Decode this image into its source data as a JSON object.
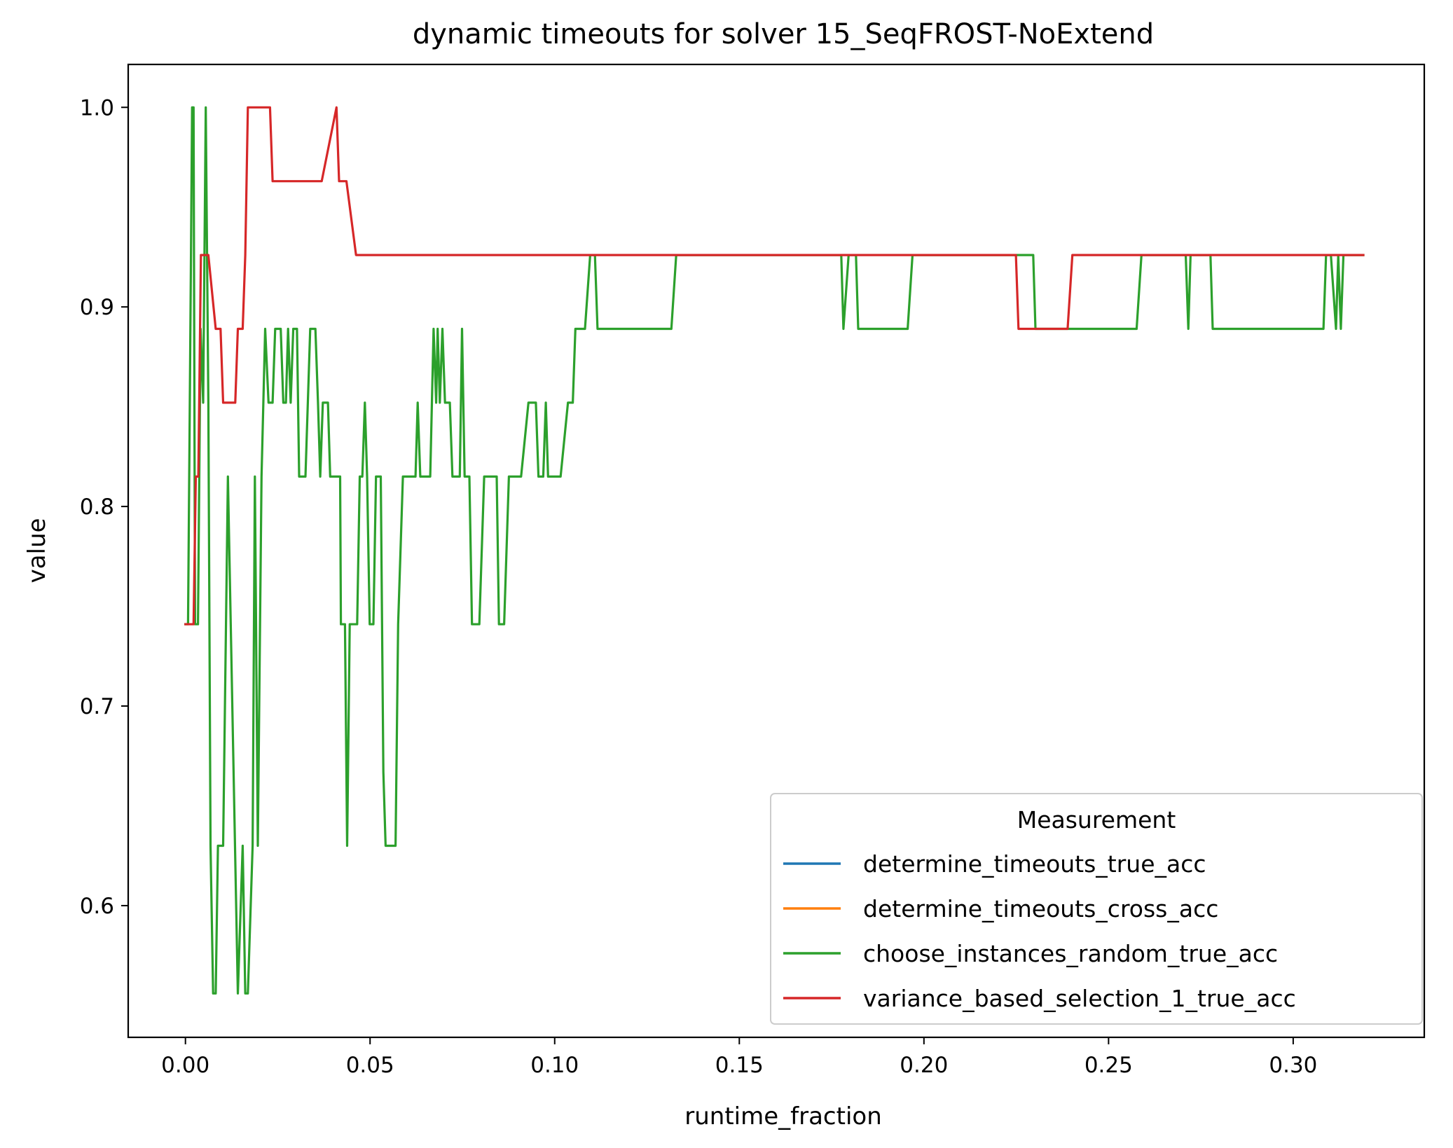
{
  "chart_data": {
    "type": "line",
    "title": "dynamic timeouts for solver 15_SeqFROST-NoExtend",
    "xlabel": "runtime_fraction",
    "ylabel": "value",
    "xlim": [
      -0.0155,
      0.3355
    ],
    "ylim": [
      0.534,
      1.0215
    ],
    "xticks": [
      0.0,
      0.05,
      0.1,
      0.15,
      0.2,
      0.25,
      0.3
    ],
    "xtick_labels": [
      "0.00",
      "0.05",
      "0.10",
      "0.15",
      "0.20",
      "0.25",
      "0.30"
    ],
    "yticks": [
      0.6,
      0.7,
      0.8,
      0.9,
      1.0
    ],
    "ytick_labels": [
      "0.6",
      "0.7",
      "0.8",
      "0.9",
      "1.0"
    ],
    "grid": false,
    "legend": {
      "title": "Measurement",
      "position": "lower-right"
    },
    "series": [
      {
        "name": "determine_timeouts_true_acc",
        "color": "#1f77b4",
        "points": []
      },
      {
        "name": "determine_timeouts_cross_acc",
        "color": "#ff7f0e",
        "points": []
      },
      {
        "name": "choose_instances_random_true_acc",
        "color": "#2ca02c",
        "points": [
          [
            0.0,
            0.741
          ],
          [
            0.0007,
            0.741
          ],
          [
            0.0015,
            0.926
          ],
          [
            0.0018,
            1.0
          ],
          [
            0.0022,
            1.0
          ],
          [
            0.0026,
            0.741
          ],
          [
            0.0034,
            0.741
          ],
          [
            0.0041,
            0.889
          ],
          [
            0.0048,
            0.852
          ],
          [
            0.0055,
            1.0
          ],
          [
            0.0062,
            0.852
          ],
          [
            0.0068,
            0.63
          ],
          [
            0.0075,
            0.556
          ],
          [
            0.0082,
            0.556
          ],
          [
            0.0088,
            0.63
          ],
          [
            0.0102,
            0.63
          ],
          [
            0.0115,
            0.815
          ],
          [
            0.0142,
            0.556
          ],
          [
            0.0155,
            0.63
          ],
          [
            0.0162,
            0.556
          ],
          [
            0.0169,
            0.556
          ],
          [
            0.0182,
            0.63
          ],
          [
            0.0188,
            0.815
          ],
          [
            0.0196,
            0.63
          ],
          [
            0.0206,
            0.815
          ],
          [
            0.0211,
            0.852
          ],
          [
            0.0216,
            0.889
          ],
          [
            0.0225,
            0.852
          ],
          [
            0.0236,
            0.852
          ],
          [
            0.0243,
            0.889
          ],
          [
            0.0258,
            0.889
          ],
          [
            0.0265,
            0.852
          ],
          [
            0.0272,
            0.852
          ],
          [
            0.0278,
            0.889
          ],
          [
            0.0285,
            0.852
          ],
          [
            0.0292,
            0.889
          ],
          [
            0.0302,
            0.889
          ],
          [
            0.0308,
            0.815
          ],
          [
            0.0325,
            0.815
          ],
          [
            0.0338,
            0.889
          ],
          [
            0.0352,
            0.889
          ],
          [
            0.0359,
            0.852
          ],
          [
            0.0365,
            0.815
          ],
          [
            0.0372,
            0.852
          ],
          [
            0.0386,
            0.852
          ],
          [
            0.0392,
            0.815
          ],
          [
            0.0419,
            0.815
          ],
          [
            0.0421,
            0.741
          ],
          [
            0.0432,
            0.741
          ],
          [
            0.0438,
            0.63
          ],
          [
            0.0445,
            0.741
          ],
          [
            0.0465,
            0.741
          ],
          [
            0.0472,
            0.815
          ],
          [
            0.0479,
            0.815
          ],
          [
            0.0486,
            0.852
          ],
          [
            0.0492,
            0.815
          ],
          [
            0.0499,
            0.741
          ],
          [
            0.0509,
            0.741
          ],
          [
            0.0516,
            0.815
          ],
          [
            0.0529,
            0.815
          ],
          [
            0.0536,
            0.667
          ],
          [
            0.0542,
            0.63
          ],
          [
            0.0569,
            0.63
          ],
          [
            0.0576,
            0.741
          ],
          [
            0.0589,
            0.815
          ],
          [
            0.0623,
            0.815
          ],
          [
            0.0629,
            0.852
          ],
          [
            0.0636,
            0.815
          ],
          [
            0.0663,
            0.815
          ],
          [
            0.0672,
            0.889
          ],
          [
            0.0679,
            0.852
          ],
          [
            0.0683,
            0.889
          ],
          [
            0.0689,
            0.852
          ],
          [
            0.0696,
            0.889
          ],
          [
            0.0703,
            0.852
          ],
          [
            0.0716,
            0.852
          ],
          [
            0.0723,
            0.815
          ],
          [
            0.0743,
            0.815
          ],
          [
            0.0749,
            0.889
          ],
          [
            0.0756,
            0.815
          ],
          [
            0.0769,
            0.815
          ],
          [
            0.0776,
            0.741
          ],
          [
            0.0796,
            0.741
          ],
          [
            0.0809,
            0.815
          ],
          [
            0.0843,
            0.815
          ],
          [
            0.0849,
            0.741
          ],
          [
            0.0863,
            0.741
          ],
          [
            0.0876,
            0.815
          ],
          [
            0.0909,
            0.815
          ],
          [
            0.0929,
            0.852
          ],
          [
            0.0949,
            0.852
          ],
          [
            0.0956,
            0.815
          ],
          [
            0.0969,
            0.815
          ],
          [
            0.0976,
            0.852
          ],
          [
            0.0982,
            0.815
          ],
          [
            0.1016,
            0.815
          ],
          [
            0.1036,
            0.852
          ],
          [
            0.1049,
            0.852
          ],
          [
            0.1056,
            0.889
          ],
          [
            0.1082,
            0.889
          ],
          [
            0.1096,
            0.926
          ],
          [
            0.1109,
            0.926
          ],
          [
            0.1116,
            0.889
          ],
          [
            0.1316,
            0.889
          ],
          [
            0.1329,
            0.926
          ],
          [
            0.1776,
            0.926
          ],
          [
            0.1782,
            0.889
          ],
          [
            0.1796,
            0.926
          ],
          [
            0.1816,
            0.926
          ],
          [
            0.1822,
            0.889
          ],
          [
            0.1956,
            0.889
          ],
          [
            0.1969,
            0.926
          ],
          [
            0.2296,
            0.926
          ],
          [
            0.2302,
            0.889
          ],
          [
            0.2576,
            0.889
          ],
          [
            0.2589,
            0.926
          ],
          [
            0.2709,
            0.926
          ],
          [
            0.2716,
            0.889
          ],
          [
            0.2722,
            0.926
          ],
          [
            0.2776,
            0.926
          ],
          [
            0.2782,
            0.889
          ],
          [
            0.3082,
            0.889
          ],
          [
            0.3089,
            0.926
          ],
          [
            0.3102,
            0.926
          ],
          [
            0.3116,
            0.889
          ],
          [
            0.3122,
            0.926
          ],
          [
            0.3129,
            0.889
          ],
          [
            0.3136,
            0.926
          ],
          [
            0.319,
            0.926
          ]
        ]
      },
      {
        "name": "variance_based_selection_1_true_acc",
        "color": "#d62728",
        "points": [
          [
            0.0,
            0.741
          ],
          [
            0.0022,
            0.741
          ],
          [
            0.0028,
            0.815
          ],
          [
            0.0035,
            0.815
          ],
          [
            0.0042,
            0.926
          ],
          [
            0.0062,
            0.926
          ],
          [
            0.0082,
            0.889
          ],
          [
            0.0095,
            0.889
          ],
          [
            0.0102,
            0.852
          ],
          [
            0.0135,
            0.852
          ],
          [
            0.0142,
            0.889
          ],
          [
            0.0155,
            0.889
          ],
          [
            0.0162,
            0.926
          ],
          [
            0.0169,
            1.0
          ],
          [
            0.0229,
            1.0
          ],
          [
            0.0236,
            0.963
          ],
          [
            0.0369,
            0.963
          ],
          [
            0.0409,
            1.0
          ],
          [
            0.0416,
            0.963
          ],
          [
            0.0436,
            0.963
          ],
          [
            0.0462,
            0.926
          ],
          [
            0.2249,
            0.926
          ],
          [
            0.2256,
            0.889
          ],
          [
            0.2389,
            0.889
          ],
          [
            0.2402,
            0.926
          ],
          [
            0.319,
            0.926
          ]
        ]
      }
    ]
  }
}
